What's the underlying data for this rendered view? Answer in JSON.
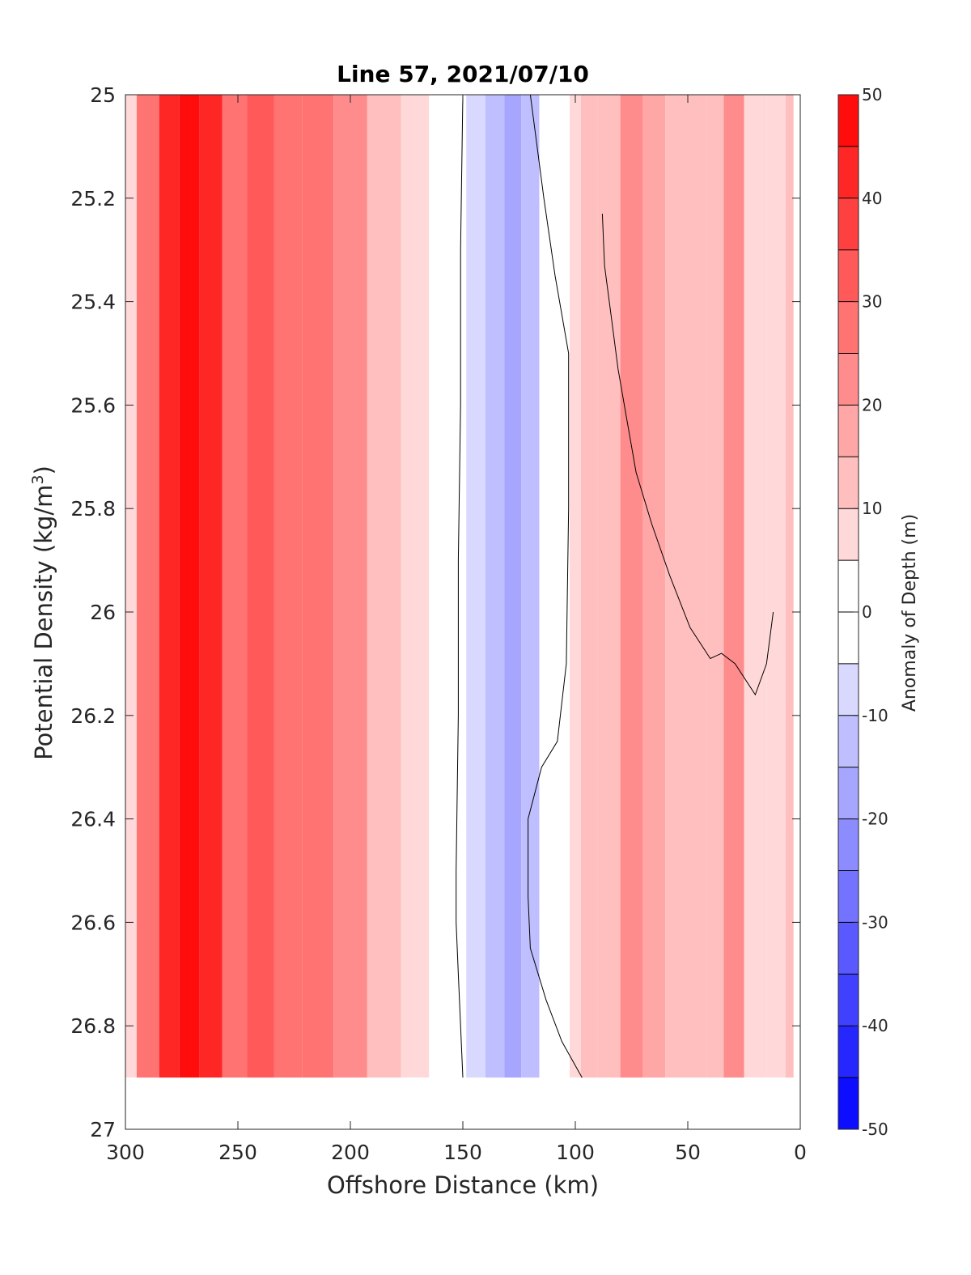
{
  "chart_data": {
    "type": "heatmap",
    "title": "Line 57, 2021/07/10",
    "xlabel": "Offshore Distance (km)",
    "ylabel_main": "Potential Density (kg/m",
    "ylabel_sup": "3",
    "ylabel_close": ")",
    "xlim": [
      300,
      0
    ],
    "ylim": [
      25,
      27
    ],
    "x_reversed": true,
    "y_reversed": true,
    "xticks": [
      300,
      250,
      200,
      150,
      100,
      50,
      0
    ],
    "xtick_labels": [
      "300",
      "250",
      "200",
      "150",
      "100",
      "50",
      "0"
    ],
    "yticks": [
      25,
      25.2,
      25.4,
      25.6,
      25.8,
      26,
      26.2,
      26.4,
      26.6,
      26.8,
      27
    ],
    "ytick_labels": [
      "25",
      "25.2",
      "25.4",
      "25.6",
      "25.8",
      "26",
      "26.2",
      "26.4",
      "26.6",
      "26.8",
      "27"
    ],
    "colorbar": {
      "label": "Anomaly of Depth (m)",
      "range": [
        -50,
        50
      ],
      "step": 5,
      "ticks": [
        50,
        40,
        30,
        20,
        10,
        0,
        -10,
        -20,
        -30,
        -40,
        -50
      ],
      "tick_labels": [
        "50",
        "40",
        "30",
        "20",
        "10",
        "0",
        "-10",
        "-20",
        "-30",
        "-40",
        "-50"
      ],
      "colormap": "blue-white-red diverging"
    },
    "data_extent": {
      "x_max": 300,
      "x_min": 0,
      "y_bottom": 26.9
    },
    "field_profiles_x": [
      300,
      290,
      280,
      272,
      262,
      252,
      240,
      228,
      215,
      200,
      185,
      170,
      160,
      152,
      145,
      135,
      128,
      120,
      112,
      105,
      100,
      95,
      85,
      75,
      65,
      55,
      45,
      38,
      30,
      20,
      10,
      3
    ],
    "field_profiles_value": [
      5,
      25,
      40,
      45,
      40,
      28,
      32,
      28,
      25,
      20,
      12,
      6,
      3,
      0,
      -6,
      -12,
      -16,
      -10,
      -4,
      2,
      6,
      10,
      14,
      20,
      18,
      14,
      10,
      12,
      24,
      8,
      5,
      10
    ],
    "zero_contours": [
      {
        "x": [
          150,
          151,
          151,
          152,
          152,
          153,
          153,
          152,
          151,
          150
        ],
        "y": [
          25.0,
          25.3,
          25.6,
          25.9,
          26.2,
          26.5,
          26.6,
          26.7,
          26.8,
          26.9
        ]
      },
      {
        "x": [
          120,
          114,
          109,
          103,
          103,
          104,
          108,
          115,
          121,
          121,
          120,
          113,
          106,
          97
        ],
        "y": [
          25.0,
          25.2,
          25.35,
          25.5,
          25.8,
          26.1,
          26.25,
          26.3,
          26.4,
          26.55,
          26.65,
          26.75,
          26.83,
          26.9
        ]
      },
      {
        "x": [
          88,
          87,
          84,
          81,
          77,
          73,
          66,
          58,
          49,
          40,
          35,
          29,
          20,
          15,
          12
        ],
        "y": [
          25.23,
          25.33,
          25.43,
          25.53,
          25.63,
          25.73,
          25.83,
          25.93,
          26.03,
          26.09,
          26.08,
          26.1,
          26.16,
          26.1,
          26.0
        ]
      }
    ]
  }
}
